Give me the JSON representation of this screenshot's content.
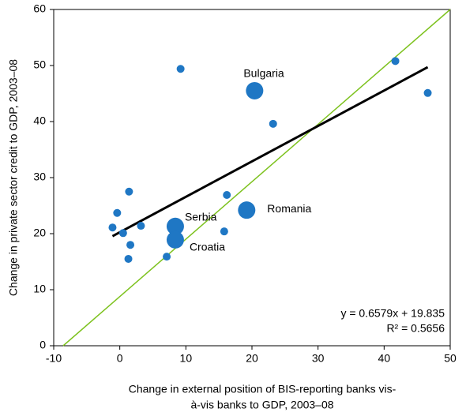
{
  "chart_data": {
    "type": "scatter",
    "x_label": [
      "Change in external position of BIS-reporting banks vis-",
      "à-vis banks to GDP, 2003–08"
    ],
    "y_label": "Change in private sector credit to GDP, 2003–08",
    "series": [
      {
        "color": "#1f77c4",
        "x": [
          -1.1,
          -0.4,
          0.5,
          1.4,
          1.6,
          1.3,
          3.2,
          7.1,
          8.4,
          8.4,
          9.2,
          15.8,
          16.2,
          19.2,
          20.4,
          23.2,
          41.7,
          46.6
        ],
        "values": [
          21.1,
          23.7,
          20.1,
          27.5,
          18.0,
          15.5,
          21.4,
          15.9,
          21.3,
          18.9,
          49.4,
          20.4,
          26.9,
          24.2,
          45.5,
          39.6,
          50.8,
          45.1
        ],
        "labels": [
          null,
          null,
          null,
          null,
          null,
          null,
          null,
          null,
          "Serbia",
          "Croatia",
          null,
          null,
          null,
          "Romania",
          "Bulgaria",
          null,
          null,
          null
        ]
      }
    ],
    "trendline_color": "#000000",
    "diagonal_color": "#7dc21e",
    "annotation": [
      "y = 0.6579x + 19.835",
      "R² = 0.5656"
    ],
    "xlim": [
      -10,
      50
    ],
    "xticks": [
      -10,
      0,
      10,
      20,
      30,
      40,
      50
    ],
    "ylim": [
      0,
      60
    ],
    "yticks": [
      0,
      10,
      20,
      30,
      40,
      50,
      60
    ]
  }
}
